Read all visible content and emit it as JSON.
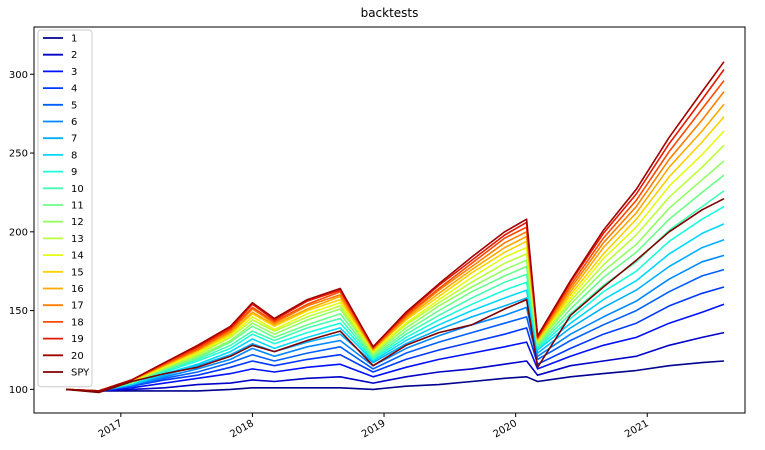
{
  "chart_data": {
    "type": "line",
    "title": "backtests",
    "xlabel": "",
    "ylabel": "",
    "x_ticks": [
      "2017",
      "2018",
      "2019",
      "2020",
      "2021"
    ],
    "y_ticks": [
      100,
      150,
      200,
      250,
      300
    ],
    "ylim": [
      85,
      330
    ],
    "grid": false,
    "legend_position": "top-left",
    "x_points": [
      "2016-08",
      "2016-11",
      "2017-02",
      "2017-05",
      "2017-08",
      "2017-11",
      "2018-01",
      "2018-03",
      "2018-06",
      "2018-09",
      "2018-12",
      "2019-03",
      "2019-06",
      "2019-09",
      "2019-12",
      "2020-02",
      "2020-03",
      "2020-06",
      "2020-09",
      "2020-12",
      "2021-03",
      "2021-06",
      "2021-08"
    ],
    "series": [
      {
        "name": "1",
        "color": "#00008f",
        "values": [
          100,
          99,
          99,
          99,
          99,
          100,
          101,
          101,
          101,
          101,
          100,
          102,
          103,
          105,
          107,
          108,
          105,
          108,
          110,
          112,
          115,
          117,
          118
        ]
      },
      {
        "name": "2",
        "color": "#0000c8",
        "values": [
          100,
          99,
          100,
          101,
          103,
          104,
          106,
          105,
          107,
          108,
          104,
          108,
          111,
          113,
          116,
          118,
          109,
          115,
          118,
          121,
          128,
          133,
          136
        ]
      },
      {
        "name": "3",
        "color": "#0010ff",
        "values": [
          100,
          99,
          101,
          104,
          107,
          110,
          113,
          111,
          114,
          116,
          108,
          114,
          119,
          123,
          127,
          130,
          113,
          121,
          128,
          133,
          142,
          149,
          154
        ]
      },
      {
        "name": "4",
        "color": "#0038ff",
        "values": [
          100,
          99,
          102,
          106,
          109,
          114,
          118,
          115,
          119,
          122,
          111,
          119,
          125,
          130,
          135,
          139,
          116,
          126,
          135,
          142,
          153,
          161,
          165
        ]
      },
      {
        "name": "5",
        "color": "#0060ff",
        "values": [
          100,
          99,
          102,
          107,
          111,
          117,
          122,
          118,
          123,
          127,
          113,
          123,
          130,
          136,
          142,
          146,
          119,
          131,
          141,
          150,
          162,
          172,
          176
        ]
      },
      {
        "name": "6",
        "color": "#0088ff",
        "values": [
          100,
          99,
          103,
          108,
          113,
          119,
          126,
          121,
          127,
          131,
          115,
          126,
          134,
          141,
          147,
          152,
          121,
          135,
          146,
          156,
          170,
          181,
          185
        ]
      },
      {
        "name": "7",
        "color": "#00b0ff",
        "values": [
          100,
          99,
          103,
          109,
          115,
          122,
          129,
          124,
          130,
          135,
          117,
          129,
          138,
          146,
          153,
          158,
          123,
          139,
          152,
          163,
          178,
          190,
          195
        ]
      },
      {
        "name": "8",
        "color": "#00d8ff",
        "values": [
          100,
          99,
          103,
          110,
          116,
          124,
          132,
          126,
          133,
          139,
          118,
          131,
          141,
          150,
          158,
          163,
          125,
          142,
          157,
          169,
          186,
          199,
          205
        ]
      },
      {
        "name": "9",
        "color": "#1cffda",
        "values": [
          100,
          99,
          104,
          111,
          118,
          126,
          135,
          129,
          136,
          142,
          119,
          133,
          144,
          154,
          163,
          168,
          126,
          145,
          162,
          175,
          194,
          208,
          216
        ]
      },
      {
        "name": "10",
        "color": "#44ffb2",
        "values": [
          100,
          99,
          104,
          112,
          119,
          128,
          137,
          131,
          139,
          145,
          120,
          135,
          147,
          158,
          168,
          173,
          127,
          148,
          166,
          181,
          201,
          216,
          226
        ]
      },
      {
        "name": "11",
        "color": "#6cff8a",
        "values": [
          100,
          99,
          104,
          113,
          120,
          130,
          140,
          133,
          141,
          148,
          121,
          137,
          150,
          162,
          172,
          178,
          128,
          151,
          171,
          187,
          208,
          225,
          236
        ]
      },
      {
        "name": "12",
        "color": "#94ff62",
        "values": [
          100,
          99,
          105,
          113,
          121,
          131,
          142,
          135,
          144,
          151,
          122,
          139,
          153,
          165,
          176,
          182,
          129,
          154,
          175,
          192,
          215,
          233,
          245
        ]
      },
      {
        "name": "13",
        "color": "#bcff3a",
        "values": [
          100,
          99,
          105,
          114,
          122,
          133,
          144,
          137,
          146,
          153,
          123,
          141,
          155,
          168,
          180,
          186,
          130,
          156,
          179,
          198,
          222,
          241,
          255
        ]
      },
      {
        "name": "14",
        "color": "#e4ff12",
        "values": [
          100,
          99,
          105,
          114,
          123,
          134,
          146,
          138,
          148,
          155,
          124,
          142,
          157,
          171,
          184,
          190,
          131,
          158,
          183,
          203,
          229,
          249,
          264
        ]
      },
      {
        "name": "15",
        "color": "#ffd200",
        "values": [
          100,
          99,
          105,
          115,
          124,
          135,
          148,
          140,
          150,
          157,
          125,
          144,
          159,
          174,
          187,
          194,
          131,
          160,
          186,
          208,
          235,
          257,
          273
        ]
      },
      {
        "name": "16",
        "color": "#ffa900",
        "values": [
          100,
          99,
          106,
          115,
          125,
          136,
          149,
          141,
          151,
          159,
          125,
          145,
          161,
          176,
          190,
          197,
          132,
          162,
          190,
          212,
          241,
          264,
          281
        ]
      },
      {
        "name": "17",
        "color": "#ff7f00",
        "values": [
          100,
          99,
          106,
          116,
          125,
          137,
          151,
          142,
          153,
          160,
          126,
          146,
          163,
          178,
          193,
          200,
          132,
          164,
          193,
          216,
          246,
          271,
          289
        ]
      },
      {
        "name": "18",
        "color": "#ff4a00",
        "values": [
          100,
          99,
          106,
          116,
          126,
          138,
          152,
          143,
          154,
          162,
          126,
          147,
          164,
          180,
          196,
          203,
          133,
          166,
          196,
          220,
          251,
          278,
          296
        ]
      },
      {
        "name": "19",
        "color": "#e31900",
        "values": [
          100,
          99,
          106,
          117,
          127,
          139,
          154,
          144,
          156,
          163,
          127,
          148,
          166,
          182,
          198,
          206,
          133,
          168,
          199,
          224,
          256,
          284,
          303
        ]
      },
      {
        "name": "20",
        "color": "#a30000",
        "values": [
          100,
          99,
          106,
          117,
          128,
          140,
          155,
          145,
          157,
          164,
          127,
          149,
          167,
          184,
          200,
          208,
          134,
          169,
          201,
          227,
          260,
          289,
          308
        ]
      },
      {
        "name": "SPY",
        "color": "#7f0000",
        "values": [
          100,
          98,
          105,
          110,
          114,
          121,
          128,
          124,
          131,
          137,
          115,
          128,
          136,
          141,
          151,
          157,
          114,
          147,
          165,
          182,
          200,
          214,
          221
        ]
      }
    ]
  }
}
